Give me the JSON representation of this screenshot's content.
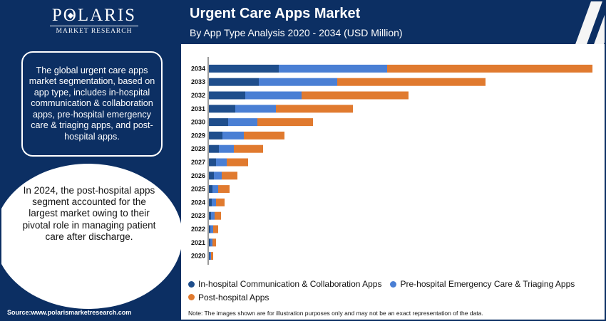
{
  "brand": {
    "name_pre": "P",
    "name_post": "LARIS",
    "sub": "MARKET RESEARCH"
  },
  "left": {
    "description": "The global urgent care apps market segmentation, based on app type, includes in-hospital communication & collaboration apps, pre-hospital emergency care & triaging apps, and post-hospital apps.",
    "highlight": "In 2024, the post-hospital apps segment accounted for the largest market owing to their pivotal role in managing patient care after discharge.",
    "source": "Source:www.polarismarketresearch.com"
  },
  "header": {
    "title": "Urgent Care Apps Market",
    "subtitle": "By App Type Analysis 2020 - 2034 (USD Million)"
  },
  "note": "Note: The images shown are for illustration purposes only and may not be an exact representation of the data.",
  "colors": {
    "navy": "#0c2f63",
    "series1": "#1f4e8c",
    "series2": "#4a7fd4",
    "series3": "#e07a2f"
  },
  "chart_data": {
    "type": "bar",
    "orientation": "horizontal",
    "stacked": true,
    "categories": [
      "2034",
      "2033",
      "2032",
      "2031",
      "2030",
      "2029",
      "2028",
      "2027",
      "2026",
      "2025",
      "2024",
      "2023",
      "2022",
      "2021",
      "2020"
    ],
    "series": [
      {
        "name": "In-hospital Communication & Collaboration Apps",
        "color": "#1f4e8c",
        "values": [
          98,
          70,
          51,
          37,
          27,
          19,
          14,
          10,
          7,
          5,
          4,
          3,
          2,
          2,
          1
        ]
      },
      {
        "name": "Pre-hospital Emergency Care & Triaging Apps",
        "color": "#4a7fd4",
        "values": [
          152,
          110,
          79,
          57,
          41,
          30,
          21,
          15,
          11,
          8,
          6,
          5,
          4,
          3,
          2
        ]
      },
      {
        "name": "Post-hospital Apps",
        "color": "#e07a2f",
        "values": [
          288,
          208,
          150,
          108,
          78,
          57,
          41,
          30,
          22,
          16,
          12,
          9,
          7,
          5,
          3
        ]
      }
    ],
    "xlim": [
      0,
      540
    ],
    "grid": false,
    "axis_values_shown": false,
    "legend_position": "bottom"
  }
}
